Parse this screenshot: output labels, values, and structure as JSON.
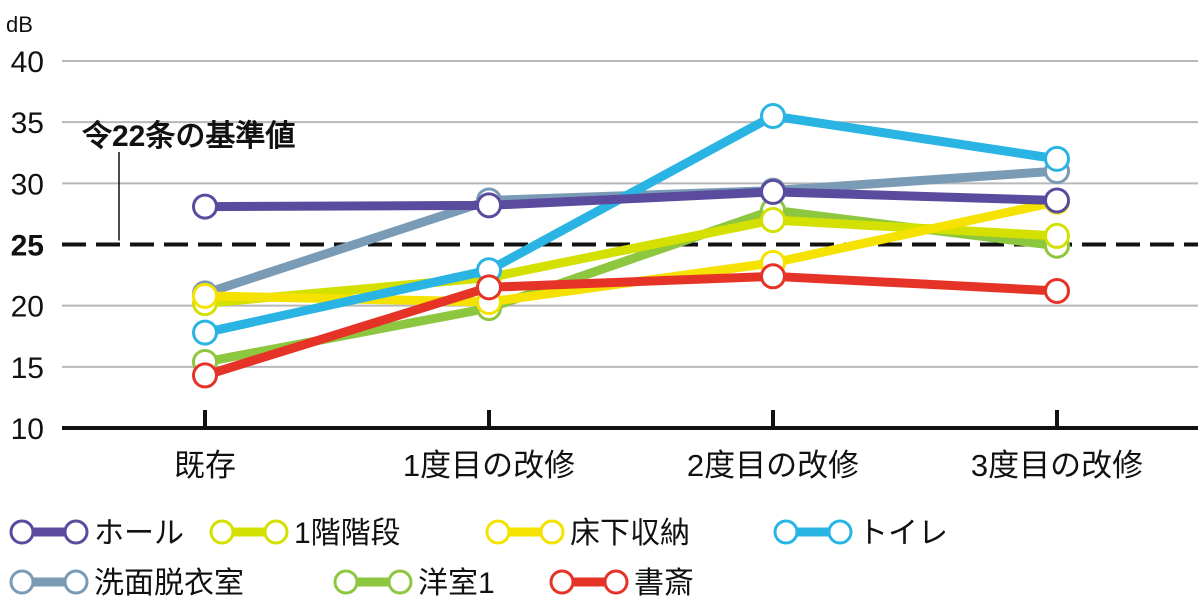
{
  "chart_data": {
    "type": "line",
    "unit": "dB",
    "categories": [
      "既存",
      "1度目の改修",
      "2度目の改修",
      "3度目の改修"
    ],
    "ylim": [
      10,
      40
    ],
    "yticks": [
      10,
      15,
      20,
      25,
      30,
      35,
      40
    ],
    "grid": true,
    "reference_line": {
      "value": 25,
      "label": "25",
      "annotation": "令22条の基準値"
    },
    "legend_position": "bottom",
    "series": [
      {
        "name": "洗面脱衣室",
        "color": "#7a9bb5",
        "values": [
          21.0,
          28.6,
          29.4,
          31.0
        ]
      },
      {
        "name": "洋室1",
        "color": "#8dc63f",
        "values": [
          15.4,
          19.8,
          27.8,
          24.9
        ]
      },
      {
        "name": "1階階段",
        "color": "#d4e000",
        "values": [
          20.2,
          22.3,
          27.0,
          25.7
        ]
      },
      {
        "name": "床下収納",
        "color": "#f5e200",
        "values": [
          20.8,
          20.3,
          23.5,
          28.5
        ]
      },
      {
        "name": "トイレ",
        "color": "#2ab4e4",
        "values": [
          17.8,
          22.9,
          35.5,
          32.0
        ]
      },
      {
        "name": "書斎",
        "color": "#e63327",
        "values": [
          14.3,
          21.5,
          22.4,
          21.2
        ]
      },
      {
        "name": "ホール",
        "color": "#5b4b9e",
        "values": [
          28.1,
          28.2,
          29.3,
          28.6
        ]
      }
    ],
    "legend": [
      {
        "name": "ホール",
        "color": "#5b4b9e"
      },
      {
        "name": "1階階段",
        "color": "#d4e000"
      },
      {
        "name": "床下収納",
        "color": "#f5e200"
      },
      {
        "name": "トイレ",
        "color": "#2ab4e4"
      },
      {
        "name": "洗面脱衣室",
        "color": "#7a9bb5"
      },
      {
        "name": "洋室1",
        "color": "#8dc63f"
      },
      {
        "name": "書斎",
        "color": "#e63327"
      }
    ]
  }
}
